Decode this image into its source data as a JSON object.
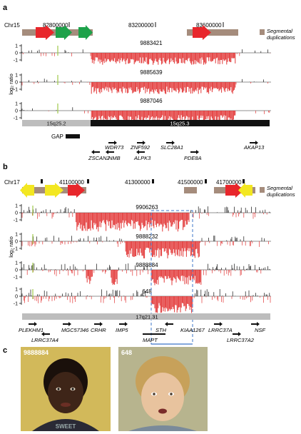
{
  "panels": {
    "a": "a",
    "b": "b",
    "c": "c"
  },
  "colors": {
    "segdup": "#a58c7c",
    "red": "#e8262b",
    "green": "#1da24a",
    "yellow": "#f3e721",
    "dark": "#111111",
    "band_light": "#bdbdbd",
    "loss": "#e23535",
    "gain": "#111111",
    "marker": "#9ec84a",
    "dash_box": "#3b74c8"
  },
  "panel_a": {
    "chr": "Chr15",
    "coords": [
      "82800000",
      "83200000",
      "83600000"
    ],
    "segdup_label": [
      "Segmental",
      "duplications"
    ],
    "ylabel": "log₂ ratio",
    "tick_vals": [
      "1",
      "0",
      "-1"
    ],
    "samples": [
      "9883421",
      "9885639",
      "9887046"
    ],
    "bands": [
      "15q25.2",
      "15q25.3"
    ],
    "gap": "GAP",
    "genes_top": [
      "WDR73",
      "ZNF592",
      "SLC28A1",
      "AKAP13"
    ],
    "genes_bot": [
      "ZSCAN2",
      "NMB",
      "ALPK3",
      "PDE8A"
    ]
  },
  "panel_b": {
    "chr": "Chr17",
    "coords": [
      "41100000",
      "41300000",
      "41500000",
      "41700000"
    ],
    "segdup_label": [
      "Segmental",
      "duplications"
    ],
    "ylabel": "log₂ ratio",
    "tick_vals": [
      "1",
      "0",
      "-1"
    ],
    "samples": [
      "9906263",
      "9888232",
      "9888884",
      "648"
    ],
    "band": "17q21.31",
    "genes_top": [
      "PLEKHM1",
      "MGC57346",
      "CRHR",
      "IMP5",
      "STH",
      "KIAA1267",
      "LRRC37A",
      "NSF"
    ],
    "genes_bot": [
      "LRRC37A4",
      "MAPT",
      "LRRC37A2"
    ]
  },
  "panel_c": {
    "photos": [
      {
        "label": "9888884",
        "bg": "#d2b95a",
        "skin": "#3e2518",
        "hair": "#1a100b",
        "shirt": "#2a2a35"
      },
      {
        "label": "648",
        "bg": "#b7b48e",
        "skin": "#e8c39e",
        "hair": "#c7a15a",
        "shirt": "#7a8a9a"
      }
    ]
  }
}
